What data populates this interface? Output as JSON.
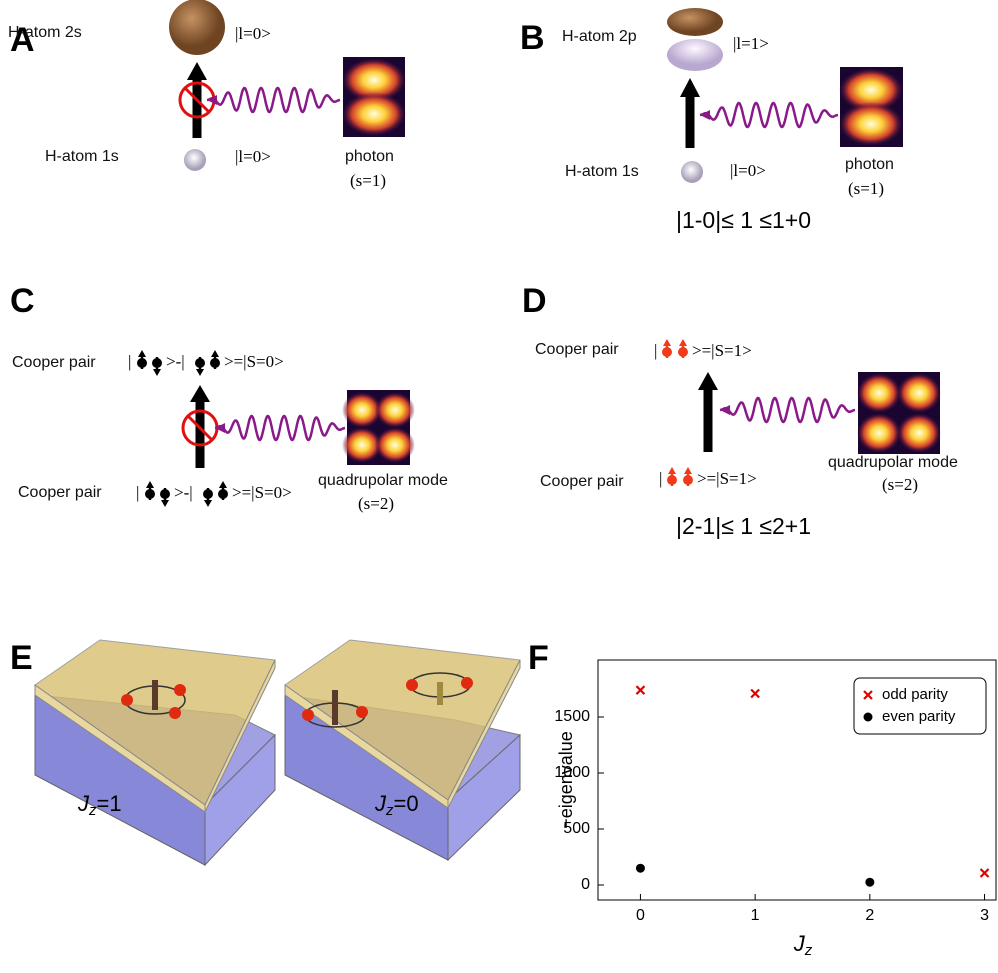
{
  "panels": [
    {
      "label": "A",
      "upper_state": "H-atom 2s",
      "upper_ket": "|l=0>",
      "lower_state": "H-atom 1s",
      "lower_ket": "|l=0>",
      "source": "photon",
      "spin": "(s=1)"
    },
    {
      "label": "B",
      "upper_state": "H-atom 2p",
      "upper_ket": "|l=1>",
      "lower_state": "H-atom 1s",
      "lower_ket": "|l=0>",
      "source": "photon",
      "spin": "(s=1)",
      "rule": "|1-0|≤ 1 ≤1+0"
    },
    {
      "label": "C",
      "upper_state": "Cooper pair",
      "upper_ket": [
        "|",
        ">-|",
        ">=|S=0>"
      ],
      "lower_state": "Cooper pair",
      "lower_ket": [
        "|",
        ">-|",
        ">=|S=0>"
      ],
      "source": "quadrupolar mode",
      "spin": "(s=2)"
    },
    {
      "label": "D",
      "upper_state": "Cooper pair",
      "upper_ket": [
        "|",
        ">=|S=1>"
      ],
      "lower_state": "Cooper pair",
      "lower_ket": [
        "|",
        ">=|S=1>"
      ],
      "source": "quadrupolar mode",
      "spin": "(s=2)",
      "rule": "|2-1|≤ 1 ≤2+1"
    },
    {
      "label": "E",
      "captions": [
        {
          "symbol": "J",
          "sub": "z",
          "rest": "=1"
        },
        {
          "symbol": "J",
          "sub": "z",
          "rest": "=0"
        }
      ]
    }
  ],
  "chart_data": {
    "type": "scatter",
    "panel_label": "F",
    "ylabel": "−eigenvalue",
    "xlabel": "J",
    "xlabel_sub": "z",
    "xlim": [
      -0.37,
      3.1
    ],
    "ylim": [
      -134,
      2009
    ],
    "xticks": [
      0,
      1,
      2,
      3
    ],
    "yticks": [
      0,
      500,
      1000,
      1500
    ],
    "legend": "upper right",
    "series": [
      {
        "name": "odd parity",
        "color": "#e00000",
        "marker": "x",
        "x": [
          0,
          1,
          3
        ],
        "values": [
          1740,
          1710,
          107
        ]
      },
      {
        "name": "even parity",
        "color": "#000000",
        "marker": "o",
        "x": [
          0,
          2
        ],
        "values": [
          150,
          25
        ]
      }
    ]
  }
}
